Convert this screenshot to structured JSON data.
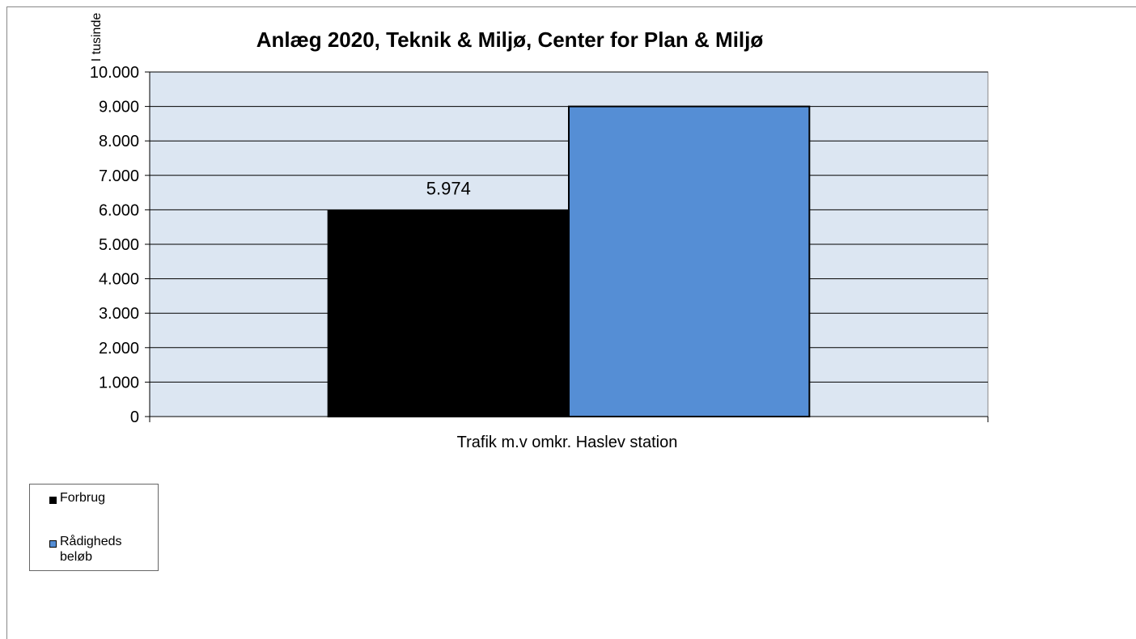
{
  "chart_data": {
    "type": "bar",
    "title": "Anlæg 2020, Teknik & Miljø, Center for Plan & Miljø",
    "ylabel": "I tusinde",
    "xlabel": "",
    "categories": [
      "Trafik m.v omkr. Haslev station"
    ],
    "series": [
      {
        "name": "Forbrug",
        "values": [
          5974
        ],
        "color": "#000000",
        "data_label": "5.974"
      },
      {
        "name": "Rådigheds beløb",
        "values": [
          9000
        ],
        "color": "#558ed5"
      }
    ],
    "ylim": [
      0,
      10000
    ],
    "yticks": [
      "0",
      "1.000",
      "2.000",
      "3.000",
      "4.000",
      "5.000",
      "6.000",
      "7.000",
      "8.000",
      "9.000",
      "10.000"
    ],
    "plot_background": "#dce6f2",
    "grid": true,
    "legend_placement": "bottom-left"
  }
}
